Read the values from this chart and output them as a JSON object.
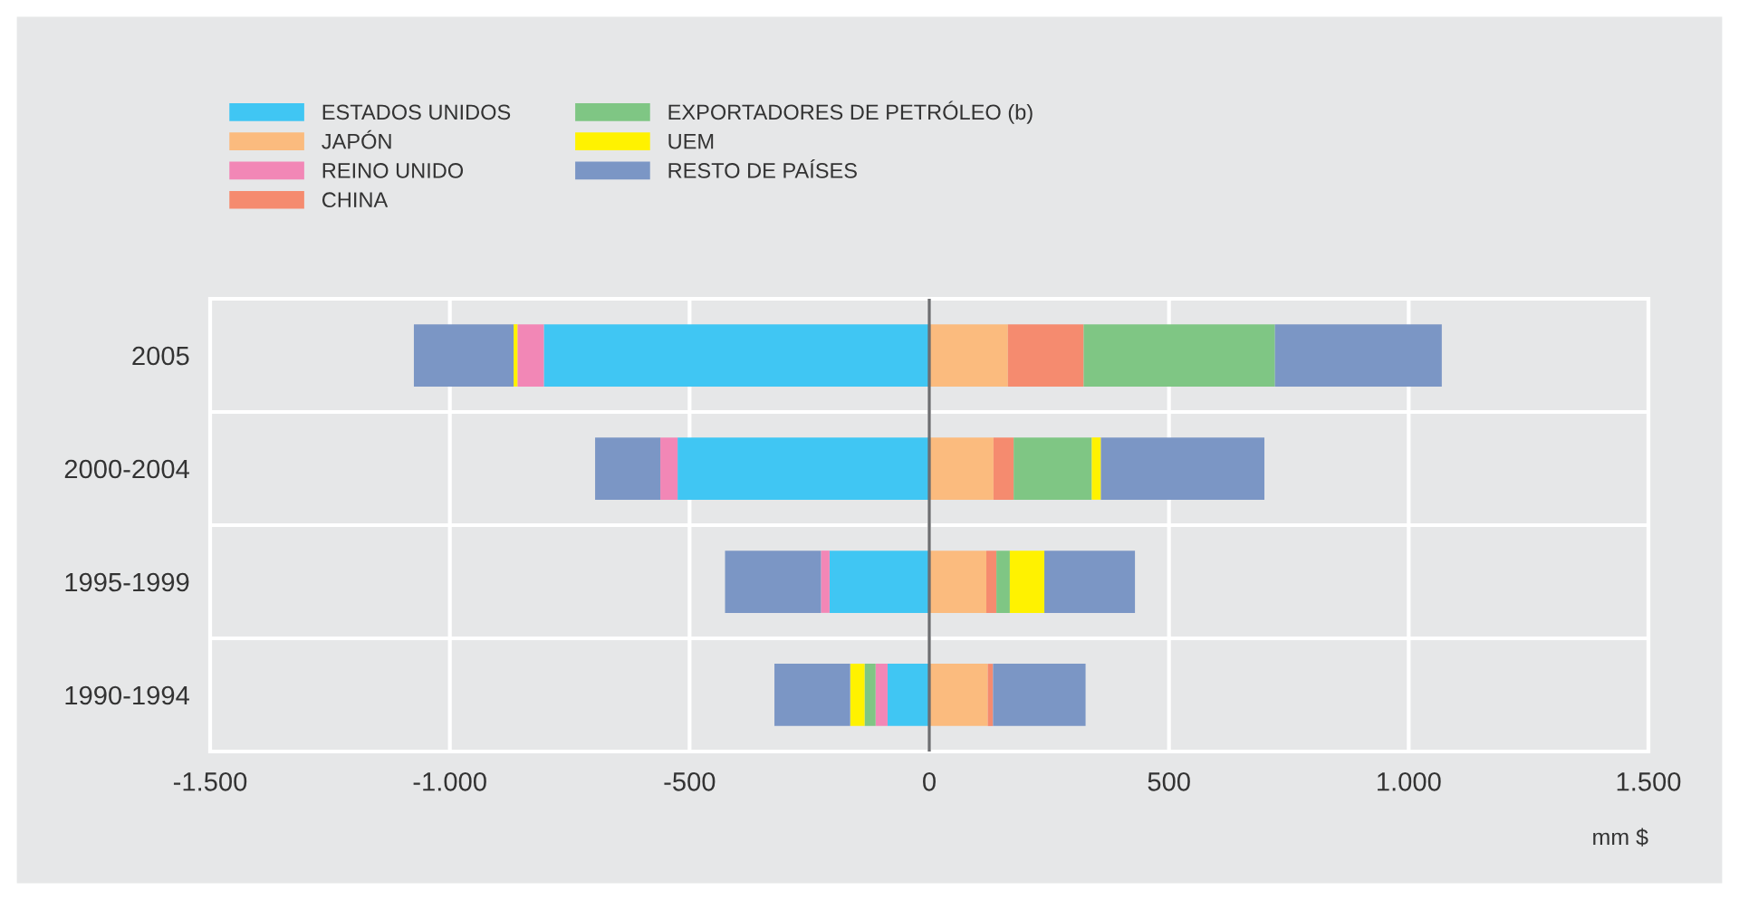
{
  "chart_data": {
    "type": "bar",
    "orientation": "horizontal",
    "stacked": true,
    "categories": [
      "2005",
      "2000-2004",
      "1995-1999",
      "1990-1994"
    ],
    "series": [
      {
        "name": "ESTADOS UNIDOS",
        "color": "#40c6f3",
        "values": [
          -804,
          -525,
          -208,
          -87
        ]
      },
      {
        "name": "JAPÓN",
        "color": "#fbbb7e",
        "values": [
          164,
          134,
          119,
          122
        ]
      },
      {
        "name": "REINO UNIDO",
        "color": "#f287b6",
        "values": [
          -55,
          -36,
          -18,
          -25
        ]
      },
      {
        "name": "CHINA",
        "color": "#f58b6f",
        "values": [
          158,
          42,
          21,
          11
        ]
      },
      {
        "name": "EXPORTADORES DE PETRÓLEO (b)",
        "color": "#7fc684",
        "values": [
          399,
          163,
          28,
          -23
        ]
      },
      {
        "name": "UEM",
        "color": "#fff200",
        "values": [
          -8,
          19,
          72,
          -30
        ]
      },
      {
        "name": "RESTO DE PAÍSES",
        "color": "#7b96c5",
        "values": [
          -208,
          -136,
          -200,
          -158
        ]
      },
      {
        "name": null,
        "color": "#7b96c5",
        "values": [
          348,
          341,
          189,
          193
        ]
      }
    ],
    "xlim": [
      -1500,
      1500
    ],
    "xticks": [
      {
        "value": -1500,
        "label": "-1.500"
      },
      {
        "value": -1000,
        "label": "-1.000"
      },
      {
        "value": -500,
        "label": "-500"
      },
      0,
      500,
      {
        "value": 1000,
        "label": "1.000"
      },
      {
        "value": 1500,
        "label": "1.500"
      }
    ],
    "ref_lines": [
      {
        "axis": "x",
        "value": 0,
        "color": "#6d6e71"
      }
    ],
    "grid": true,
    "legend": "top left",
    "annotations": [
      "mm $"
    ]
  }
}
